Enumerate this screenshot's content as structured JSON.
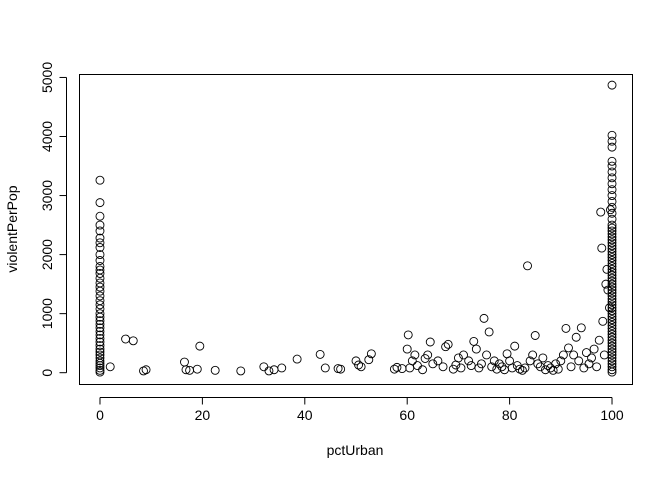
{
  "chart_data": {
    "type": "scatter",
    "title": "",
    "xlabel": "pctUrban",
    "ylabel": "violentPerPop",
    "xlim": [
      -4,
      104
    ],
    "ylim": [
      -200,
      5050
    ],
    "xticks": [
      0,
      20,
      40,
      60,
      80,
      100
    ],
    "yticks": [
      0,
      1000,
      2000,
      3000,
      4000,
      5000
    ],
    "grid": false,
    "legend": "none",
    "marker": "open-circle",
    "points": [
      [
        0,
        3260
      ],
      [
        0,
        2880
      ],
      [
        0,
        2650
      ],
      [
        0,
        2500
      ],
      [
        0,
        2400
      ],
      [
        0,
        2280
      ],
      [
        0,
        2200
      ],
      [
        0,
        2120
      ],
      [
        0,
        2000
      ],
      [
        0,
        1900
      ],
      [
        0,
        1800
      ],
      [
        0,
        1740
      ],
      [
        0,
        1680
      ],
      [
        0,
        1600
      ],
      [
        0,
        1520
      ],
      [
        0,
        1450
      ],
      [
        0,
        1380
      ],
      [
        0,
        1300
      ],
      [
        0,
        1220
      ],
      [
        0,
        1150
      ],
      [
        0,
        1080
      ],
      [
        0,
        1000
      ],
      [
        0,
        940
      ],
      [
        0,
        880
      ],
      [
        0,
        820
      ],
      [
        0,
        760
      ],
      [
        0,
        700
      ],
      [
        0,
        640
      ],
      [
        0,
        580
      ],
      [
        0,
        520
      ],
      [
        0,
        460
      ],
      [
        0,
        400
      ],
      [
        0,
        350
      ],
      [
        0,
        300
      ],
      [
        0,
        250
      ],
      [
        0,
        200
      ],
      [
        0,
        160
      ],
      [
        0,
        120
      ],
      [
        0,
        80
      ],
      [
        0,
        40
      ],
      [
        0,
        10
      ],
      [
        2,
        100
      ],
      [
        5,
        570
      ],
      [
        6.5,
        540
      ],
      [
        8.5,
        30
      ],
      [
        9,
        50
      ],
      [
        16.5,
        180
      ],
      [
        16.8,
        50
      ],
      [
        17.5,
        40
      ],
      [
        19,
        60
      ],
      [
        19.5,
        450
      ],
      [
        22.5,
        40
      ],
      [
        27.5,
        30
      ],
      [
        32,
        100
      ],
      [
        33,
        30
      ],
      [
        34,
        50
      ],
      [
        35.5,
        80
      ],
      [
        38.5,
        230
      ],
      [
        43,
        310
      ],
      [
        44,
        80
      ],
      [
        46.5,
        70
      ],
      [
        47,
        60
      ],
      [
        50,
        200
      ],
      [
        50.5,
        130
      ],
      [
        51,
        100
      ],
      [
        52.5,
        220
      ],
      [
        53,
        320
      ],
      [
        57.5,
        60
      ],
      [
        58,
        90
      ],
      [
        59,
        70
      ],
      [
        60,
        400
      ],
      [
        60.2,
        640
      ],
      [
        60.5,
        80
      ],
      [
        61,
        200
      ],
      [
        61.5,
        300
      ],
      [
        62,
        120
      ],
      [
        63,
        50
      ],
      [
        63.5,
        240
      ],
      [
        64,
        300
      ],
      [
        64.5,
        520
      ],
      [
        65,
        150
      ],
      [
        66,
        200
      ],
      [
        67,
        100
      ],
      [
        67.5,
        440
      ],
      [
        68,
        480
      ],
      [
        69,
        60
      ],
      [
        69.5,
        130
      ],
      [
        70,
        250
      ],
      [
        70.5,
        80
      ],
      [
        71,
        300
      ],
      [
        72,
        200
      ],
      [
        72.5,
        120
      ],
      [
        73,
        530
      ],
      [
        73.5,
        400
      ],
      [
        74,
        80
      ],
      [
        74.5,
        150
      ],
      [
        75,
        920
      ],
      [
        75.5,
        300
      ],
      [
        76,
        690
      ],
      [
        76.5,
        100
      ],
      [
        77,
        200
      ],
      [
        77.5,
        60
      ],
      [
        78,
        150
      ],
      [
        78.5,
        100
      ],
      [
        79,
        50
      ],
      [
        79.5,
        320
      ],
      [
        80,
        200
      ],
      [
        80.5,
        80
      ],
      [
        81,
        450
      ],
      [
        81.5,
        120
      ],
      [
        82,
        60
      ],
      [
        82.5,
        40
      ],
      [
        83,
        80
      ],
      [
        83.5,
        1810
      ],
      [
        84,
        200
      ],
      [
        84.5,
        300
      ],
      [
        85,
        630
      ],
      [
        85.5,
        150
      ],
      [
        86,
        100
      ],
      [
        86.5,
        250
      ],
      [
        87,
        50
      ],
      [
        87.5,
        120
      ],
      [
        88,
        80
      ],
      [
        88.5,
        40
      ],
      [
        89,
        150
      ],
      [
        89.5,
        60
      ],
      [
        90,
        200
      ],
      [
        90.5,
        300
      ],
      [
        91,
        750
      ],
      [
        91.5,
        420
      ],
      [
        92,
        100
      ],
      [
        92.5,
        300
      ],
      [
        93,
        600
      ],
      [
        93.5,
        200
      ],
      [
        94,
        760
      ],
      [
        94.5,
        80
      ],
      [
        95,
        340
      ],
      [
        95.5,
        150
      ],
      [
        96,
        250
      ],
      [
        96.5,
        400
      ],
      [
        97,
        100
      ],
      [
        97.5,
        550
      ],
      [
        97.8,
        2720
      ],
      [
        98,
        2110
      ],
      [
        98.2,
        870
      ],
      [
        98.5,
        300
      ],
      [
        98.8,
        1500
      ],
      [
        99,
        1750
      ],
      [
        99.2,
        1400
      ],
      [
        99.5,
        1100
      ],
      [
        99.7,
        2760
      ],
      [
        100,
        4870
      ],
      [
        100,
        4020
      ],
      [
        100,
        3920
      ],
      [
        100,
        3820
      ],
      [
        100,
        3580
      ],
      [
        100,
        3500
      ],
      [
        100,
        3400
      ],
      [
        100,
        3300
      ],
      [
        100,
        3200
      ],
      [
        100,
        3100
      ],
      [
        100,
        3000
      ],
      [
        100,
        2900
      ],
      [
        100,
        2800
      ],
      [
        100,
        2700
      ],
      [
        100,
        2600
      ],
      [
        100,
        2500
      ],
      [
        100,
        2450
      ],
      [
        100,
        2400
      ],
      [
        100,
        2350
      ],
      [
        100,
        2300
      ],
      [
        100,
        2250
      ],
      [
        100,
        2200
      ],
      [
        100,
        2150
      ],
      [
        100,
        2100
      ],
      [
        100,
        2050
      ],
      [
        100,
        2000
      ],
      [
        100,
        1950
      ],
      [
        100,
        1900
      ],
      [
        100,
        1850
      ],
      [
        100,
        1800
      ],
      [
        100,
        1750
      ],
      [
        100,
        1700
      ],
      [
        100,
        1650
      ],
      [
        100,
        1600
      ],
      [
        100,
        1550
      ],
      [
        100,
        1500
      ],
      [
        100,
        1450
      ],
      [
        100,
        1400
      ],
      [
        100,
        1350
      ],
      [
        100,
        1300
      ],
      [
        100,
        1250
      ],
      [
        100,
        1200
      ],
      [
        100,
        1150
      ],
      [
        100,
        1100
      ],
      [
        100,
        1050
      ],
      [
        100,
        1000
      ],
      [
        100,
        950
      ],
      [
        100,
        900
      ],
      [
        100,
        850
      ],
      [
        100,
        800
      ],
      [
        100,
        750
      ],
      [
        100,
        700
      ],
      [
        100,
        650
      ],
      [
        100,
        600
      ],
      [
        100,
        550
      ],
      [
        100,
        500
      ],
      [
        100,
        450
      ],
      [
        100,
        400
      ],
      [
        100,
        350
      ],
      [
        100,
        300
      ],
      [
        100,
        250
      ],
      [
        100,
        200
      ],
      [
        100,
        150
      ],
      [
        100,
        100
      ],
      [
        100,
        50
      ],
      [
        100,
        10
      ]
    ]
  }
}
